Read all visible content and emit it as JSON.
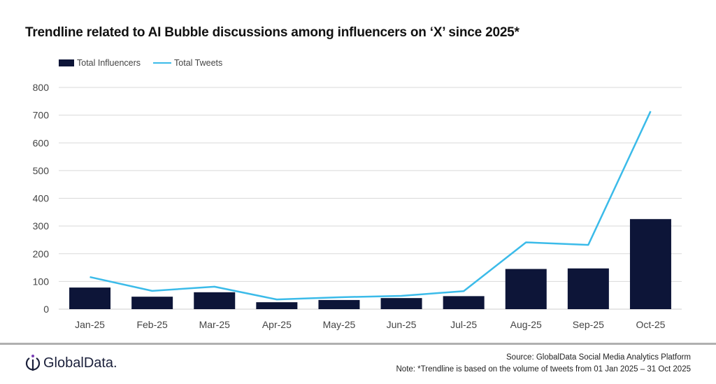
{
  "chart_data": {
    "type": "bar+line",
    "title": "Trendline related to AI Bubble discussions among influencers on ‘X’ since 2025*",
    "categories": [
      "Jan-25",
      "Feb-25",
      "Mar-25",
      "Apr-25",
      "May-25",
      "Jun-25",
      "Jul-25",
      "Aug-25",
      "Sep-25",
      "Oct-25"
    ],
    "series": [
      {
        "name": "Total Influencers",
        "type": "bar",
        "color": "#0d1538",
        "values": [
          78,
          45,
          61,
          25,
          33,
          40,
          47,
          145,
          147,
          325
        ]
      },
      {
        "name": "Total Tweets",
        "type": "line",
        "color": "#3bbbe9",
        "values": [
          116,
          66,
          81,
          35,
          43,
          48,
          65,
          241,
          232,
          714
        ]
      }
    ],
    "ylim": [
      0,
      800
    ],
    "yticks": [
      0,
      100,
      200,
      300,
      400,
      500,
      600,
      700,
      800
    ],
    "grid": true,
    "legend": "top-left"
  },
  "footer": {
    "source": "Source: GlobalData Social Media Analytics Platform",
    "note": "Note: *Trendline is based on the volume of tweets from 01 Jan 2025 – 31 Oct 2025",
    "logo": "GlobalData."
  }
}
